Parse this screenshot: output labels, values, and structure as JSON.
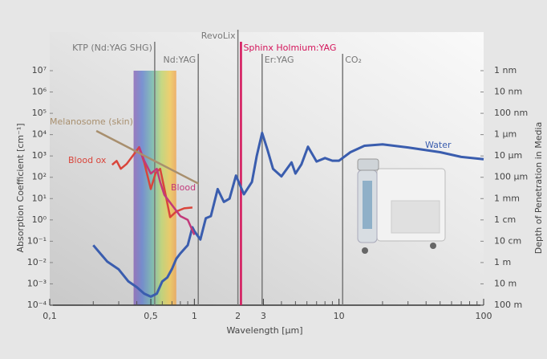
{
  "chart_data": {
    "type": "line",
    "log_x": true,
    "log_y": true,
    "x_label": "Wavelength [µm]",
    "y_label": "Absorption Coefficient [cm⁻¹]",
    "y2_label": "Depth of Penetration in Media",
    "xlim": [
      0.1,
      100
    ],
    "xticks": [
      {
        "value": 0.1,
        "label": "0,1"
      },
      {
        "value": 0.5,
        "label": "0,5"
      },
      1,
      2,
      3,
      10,
      100
    ],
    "x_minor_ticks": [
      0.2,
      0.3,
      0.4,
      0.6,
      0.7,
      0.8,
      0.9,
      4,
      5,
      6,
      7,
      8,
      9,
      20,
      30,
      40,
      50,
      60,
      70,
      80,
      90
    ],
    "ylim": [
      0.0001,
      10000000
    ],
    "yticks": [
      {
        "value": 10000000,
        "label": "10⁷"
      },
      {
        "value": 1000000,
        "label": "10⁶"
      },
      {
        "value": 100000,
        "label": "10⁵"
      },
      {
        "value": 10000,
        "label": "10⁴"
      },
      {
        "value": 1000,
        "label": "10³"
      },
      {
        "value": 100,
        "label": "10²"
      },
      {
        "value": 10,
        "label": "10¹"
      },
      {
        "value": 1,
        "label": "10⁰"
      },
      {
        "value": 0.1,
        "label": "10⁻¹"
      },
      {
        "value": 0.01,
        "label": "10⁻²"
      },
      {
        "value": 0.001,
        "label": "10⁻³"
      },
      {
        "value": 0.0001,
        "label": "10⁻⁴"
      }
    ],
    "y2lim": [
      100,
      1e-09
    ],
    "y2ticks": [
      {
        "value": 1e-09,
        "label": "1 nm"
      },
      {
        "value": 1e-08,
        "label": "10 nm"
      },
      {
        "value": 1e-07,
        "label": "100 nm"
      },
      {
        "value": 1e-06,
        "label": "1 µm"
      },
      {
        "value": 1e-05,
        "label": "10 µm"
      },
      {
        "value": 0.0001,
        "label": "100 µm"
      },
      {
        "value": 0.001,
        "label": "1 mm"
      },
      {
        "value": 0.01,
        "label": "1 cm"
      },
      {
        "value": 0.1,
        "label": "10 cm"
      },
      {
        "value": 1,
        "label": "1 m"
      },
      {
        "value": 10,
        "label": "10 m"
      },
      {
        "value": 100,
        "label": "100 m"
      }
    ],
    "visible_band": [
      0.38,
      0.75
    ],
    "lasers": [
      {
        "name": "KTP (Nd:YAG SHG)",
        "wavelength": 0.532,
        "color": "#777777"
      },
      {
        "name": "Nd:YAG",
        "wavelength": 1.064,
        "color": "#777777"
      },
      {
        "name": "RevoLix",
        "wavelength": 2.0,
        "color": "#777777"
      },
      {
        "name": "Sphinx Holmium:YAG",
        "wavelength": 2.1,
        "color": "#d4145a"
      },
      {
        "name": "Er:YAG",
        "wavelength": 2.94,
        "color": "#777777"
      },
      {
        "name": "CO₂",
        "wavelength": 10.6,
        "color": "#777777"
      }
    ],
    "series": [
      {
        "name": "Water",
        "color": "#3a5dae",
        "x": [
          0.2,
          0.25,
          0.3,
          0.35,
          0.4,
          0.45,
          0.5,
          0.55,
          0.6,
          0.65,
          0.7,
          0.75,
          0.8,
          0.9,
          0.97,
          1.0,
          1.1,
          1.2,
          1.3,
          1.45,
          1.6,
          1.75,
          1.94,
          2.2,
          2.5,
          2.7,
          2.94,
          3.2,
          3.5,
          4.0,
          4.7,
          5.0,
          5.5,
          6.1,
          7.0,
          8,
          9,
          10,
          12,
          15,
          20,
          30,
          50,
          70,
          100
        ],
        "values": [
          0.065,
          0.011,
          0.0048,
          0.0013,
          0.0007,
          0.00035,
          0.00025,
          0.00035,
          0.0013,
          0.002,
          0.005,
          0.015,
          0.027,
          0.065,
          0.45,
          0.3,
          0.12,
          1.2,
          1.5,
          28,
          7,
          10,
          120,
          16,
          60,
          1000,
          12000,
          2000,
          250,
          110,
          500,
          150,
          400,
          2700,
          550,
          800,
          600,
          600,
          1500,
          3000,
          3500,
          2500,
          1500,
          900,
          700
        ]
      },
      {
        "name": "Blood ox",
        "color": "#d9453b",
        "x": [
          0.27,
          0.29,
          0.31,
          0.34,
          0.37,
          0.415,
          0.45,
          0.5,
          0.54,
          0.58,
          0.62,
          0.68,
          0.75,
          0.85,
          0.97
        ],
        "values": [
          385,
          590,
          250,
          420,
          900,
          2600,
          500,
          28,
          160,
          250,
          30,
          1.35,
          2.5,
          3.5,
          3.8
        ]
      },
      {
        "name": "Blood",
        "color": "#c2397a",
        "x": [
          0.415,
          0.45,
          0.5,
          0.55,
          0.58,
          0.62,
          0.7,
          0.8,
          0.9,
          1.0
        ],
        "values": [
          2600,
          600,
          150,
          250,
          60,
          15,
          5,
          1.5,
          1,
          0.2
        ]
      },
      {
        "name": "Melanosome (skin)",
        "color": "#a88f6e",
        "x": [
          0.21,
          1.07
        ],
        "values": [
          15000,
          50
        ]
      }
    ]
  }
}
